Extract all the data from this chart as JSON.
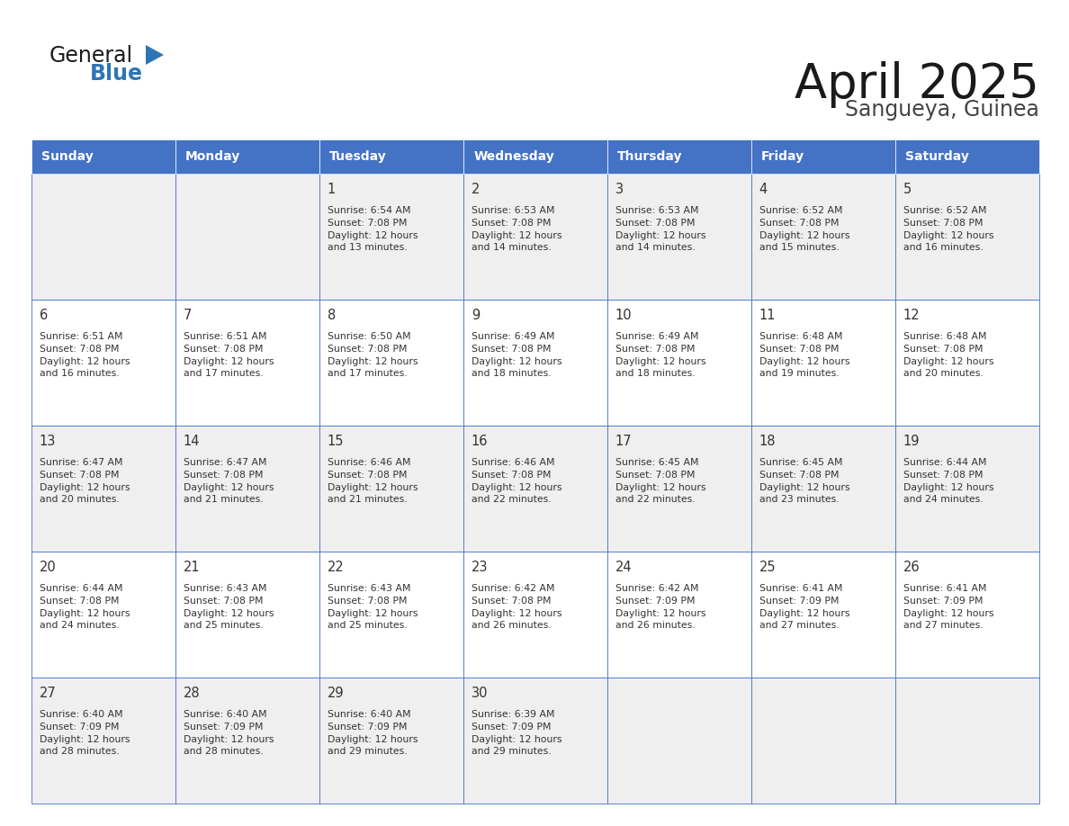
{
  "title": "April 2025",
  "subtitle": "Sangueya, Guinea",
  "days_of_week": [
    "Sunday",
    "Monday",
    "Tuesday",
    "Wednesday",
    "Thursday",
    "Friday",
    "Saturday"
  ],
  "header_bg": "#4472C4",
  "header_text": "#FFFFFF",
  "cell_bg_white": "#FFFFFF",
  "cell_bg_gray": "#EFEFEF",
  "border_color": "#4472C4",
  "border_light": "#C0C8E0",
  "text_color": "#333333",
  "day_num_color": "#333333",
  "title_color": "#1a1a1a",
  "subtitle_color": "#444444",
  "logo_general_color": "#1a1a1a",
  "logo_blue_color": "#2E75B6",
  "weeks": [
    [
      {
        "day": "",
        "info": ""
      },
      {
        "day": "",
        "info": ""
      },
      {
        "day": "1",
        "info": "Sunrise: 6:54 AM\nSunset: 7:08 PM\nDaylight: 12 hours\nand 13 minutes."
      },
      {
        "day": "2",
        "info": "Sunrise: 6:53 AM\nSunset: 7:08 PM\nDaylight: 12 hours\nand 14 minutes."
      },
      {
        "day": "3",
        "info": "Sunrise: 6:53 AM\nSunset: 7:08 PM\nDaylight: 12 hours\nand 14 minutes."
      },
      {
        "day": "4",
        "info": "Sunrise: 6:52 AM\nSunset: 7:08 PM\nDaylight: 12 hours\nand 15 minutes."
      },
      {
        "day": "5",
        "info": "Sunrise: 6:52 AM\nSunset: 7:08 PM\nDaylight: 12 hours\nand 16 minutes."
      }
    ],
    [
      {
        "day": "6",
        "info": "Sunrise: 6:51 AM\nSunset: 7:08 PM\nDaylight: 12 hours\nand 16 minutes."
      },
      {
        "day": "7",
        "info": "Sunrise: 6:51 AM\nSunset: 7:08 PM\nDaylight: 12 hours\nand 17 minutes."
      },
      {
        "day": "8",
        "info": "Sunrise: 6:50 AM\nSunset: 7:08 PM\nDaylight: 12 hours\nand 17 minutes."
      },
      {
        "day": "9",
        "info": "Sunrise: 6:49 AM\nSunset: 7:08 PM\nDaylight: 12 hours\nand 18 minutes."
      },
      {
        "day": "10",
        "info": "Sunrise: 6:49 AM\nSunset: 7:08 PM\nDaylight: 12 hours\nand 18 minutes."
      },
      {
        "day": "11",
        "info": "Sunrise: 6:48 AM\nSunset: 7:08 PM\nDaylight: 12 hours\nand 19 minutes."
      },
      {
        "day": "12",
        "info": "Sunrise: 6:48 AM\nSunset: 7:08 PM\nDaylight: 12 hours\nand 20 minutes."
      }
    ],
    [
      {
        "day": "13",
        "info": "Sunrise: 6:47 AM\nSunset: 7:08 PM\nDaylight: 12 hours\nand 20 minutes."
      },
      {
        "day": "14",
        "info": "Sunrise: 6:47 AM\nSunset: 7:08 PM\nDaylight: 12 hours\nand 21 minutes."
      },
      {
        "day": "15",
        "info": "Sunrise: 6:46 AM\nSunset: 7:08 PM\nDaylight: 12 hours\nand 21 minutes."
      },
      {
        "day": "16",
        "info": "Sunrise: 6:46 AM\nSunset: 7:08 PM\nDaylight: 12 hours\nand 22 minutes."
      },
      {
        "day": "17",
        "info": "Sunrise: 6:45 AM\nSunset: 7:08 PM\nDaylight: 12 hours\nand 22 minutes."
      },
      {
        "day": "18",
        "info": "Sunrise: 6:45 AM\nSunset: 7:08 PM\nDaylight: 12 hours\nand 23 minutes."
      },
      {
        "day": "19",
        "info": "Sunrise: 6:44 AM\nSunset: 7:08 PM\nDaylight: 12 hours\nand 24 minutes."
      }
    ],
    [
      {
        "day": "20",
        "info": "Sunrise: 6:44 AM\nSunset: 7:08 PM\nDaylight: 12 hours\nand 24 minutes."
      },
      {
        "day": "21",
        "info": "Sunrise: 6:43 AM\nSunset: 7:08 PM\nDaylight: 12 hours\nand 25 minutes."
      },
      {
        "day": "22",
        "info": "Sunrise: 6:43 AM\nSunset: 7:08 PM\nDaylight: 12 hours\nand 25 minutes."
      },
      {
        "day": "23",
        "info": "Sunrise: 6:42 AM\nSunset: 7:08 PM\nDaylight: 12 hours\nand 26 minutes."
      },
      {
        "day": "24",
        "info": "Sunrise: 6:42 AM\nSunset: 7:09 PM\nDaylight: 12 hours\nand 26 minutes."
      },
      {
        "day": "25",
        "info": "Sunrise: 6:41 AM\nSunset: 7:09 PM\nDaylight: 12 hours\nand 27 minutes."
      },
      {
        "day": "26",
        "info": "Sunrise: 6:41 AM\nSunset: 7:09 PM\nDaylight: 12 hours\nand 27 minutes."
      }
    ],
    [
      {
        "day": "27",
        "info": "Sunrise: 6:40 AM\nSunset: 7:09 PM\nDaylight: 12 hours\nand 28 minutes."
      },
      {
        "day": "28",
        "info": "Sunrise: 6:40 AM\nSunset: 7:09 PM\nDaylight: 12 hours\nand 28 minutes."
      },
      {
        "day": "29",
        "info": "Sunrise: 6:40 AM\nSunset: 7:09 PM\nDaylight: 12 hours\nand 29 minutes."
      },
      {
        "day": "30",
        "info": "Sunrise: 6:39 AM\nSunset: 7:09 PM\nDaylight: 12 hours\nand 29 minutes."
      },
      {
        "day": "",
        "info": ""
      },
      {
        "day": "",
        "info": ""
      },
      {
        "day": "",
        "info": ""
      }
    ]
  ],
  "row_bg_colors": [
    "#EFEFEF",
    "#FFFFFF",
    "#EFEFEF",
    "#FFFFFF",
    "#EFEFEF"
  ]
}
